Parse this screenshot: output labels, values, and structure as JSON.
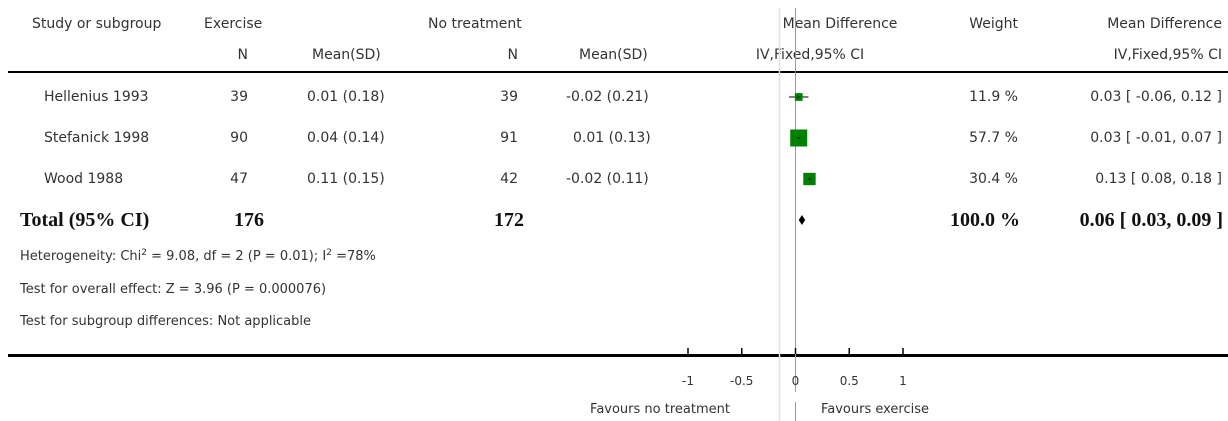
{
  "header": {
    "study_label": "Study or subgroup",
    "group1_label": "Exercise",
    "group2_label": "No treatment",
    "n1_label": "N",
    "mean1_label": "Mean(SD)",
    "n2_label": "N",
    "mean2_label": "Mean(SD)",
    "plot_title": "Mean Difference",
    "plot_method": "IV,Fixed,95% CI",
    "weight_label": "Weight",
    "md_title": "Mean Difference",
    "md_method": "IV,Fixed,95% CI"
  },
  "studies": [
    {
      "name": "Hellenius 1993",
      "n1": "39",
      "mean1": "0.01 (0.18)",
      "n2": "39",
      "mean2": "-0.02 (0.21)",
      "weight": "11.9 %",
      "ci_text": "0.03 [ -0.06, 0.12 ]"
    },
    {
      "name": "Stefanick 1998",
      "n1": "90",
      "mean1": "0.04 (0.14)",
      "n2": "91",
      "mean2": "0.01 (0.13)",
      "weight": "57.7 %",
      "ci_text": "0.03 [ -0.01, 0.07 ]"
    },
    {
      "name": "Wood 1988",
      "n1": "47",
      "mean1": "0.11 (0.15)",
      "n2": "42",
      "mean2": "-0.02 (0.11)",
      "weight": "30.4 %",
      "ci_text": "0.13 [ 0.08, 0.18 ]"
    }
  ],
  "total": {
    "label": "Total (95% CI)",
    "n1": "176",
    "n2": "172",
    "weight": "100.0 %",
    "ci_text": "0.06 [ 0.03, 0.09 ]"
  },
  "footnotes": {
    "heterogeneity_a": "Heterogeneity: Chi",
    "heterogeneity_b": " = 9.08, df = 2 (P = 0.01); I",
    "heterogeneity_c": " =78%",
    "sup": "2",
    "overall": "Test for overall effect: Z = 3.96 (P = 0.000076)",
    "subgroup": "Test for subgroup differences: Not applicable"
  },
  "axis": {
    "left_label": "Favours no treatment",
    "right_label": "Favours exercise"
  },
  "colors": {
    "study_marker": "#008000",
    "total_marker": "#000000",
    "axis": "#000000"
  },
  "chart_data": {
    "type": "forest",
    "xlim": [
      -1,
      1
    ],
    "ticks": [
      -1,
      -0.5,
      0,
      0.5,
      1
    ],
    "tick_labels": [
      "-1",
      "-0.5",
      "0",
      "0.5",
      "1"
    ],
    "studies": [
      {
        "name": "Hellenius 1993",
        "md": 0.03,
        "lower": -0.06,
        "upper": 0.12,
        "weight": 11.9
      },
      {
        "name": "Stefanick 1998",
        "md": 0.03,
        "lower": -0.01,
        "upper": 0.07,
        "weight": 57.7
      },
      {
        "name": "Wood 1988",
        "md": 0.13,
        "lower": 0.08,
        "upper": 0.18,
        "weight": 30.4
      }
    ],
    "total": {
      "md": 0.06,
      "lower": 0.03,
      "upper": 0.09
    }
  }
}
